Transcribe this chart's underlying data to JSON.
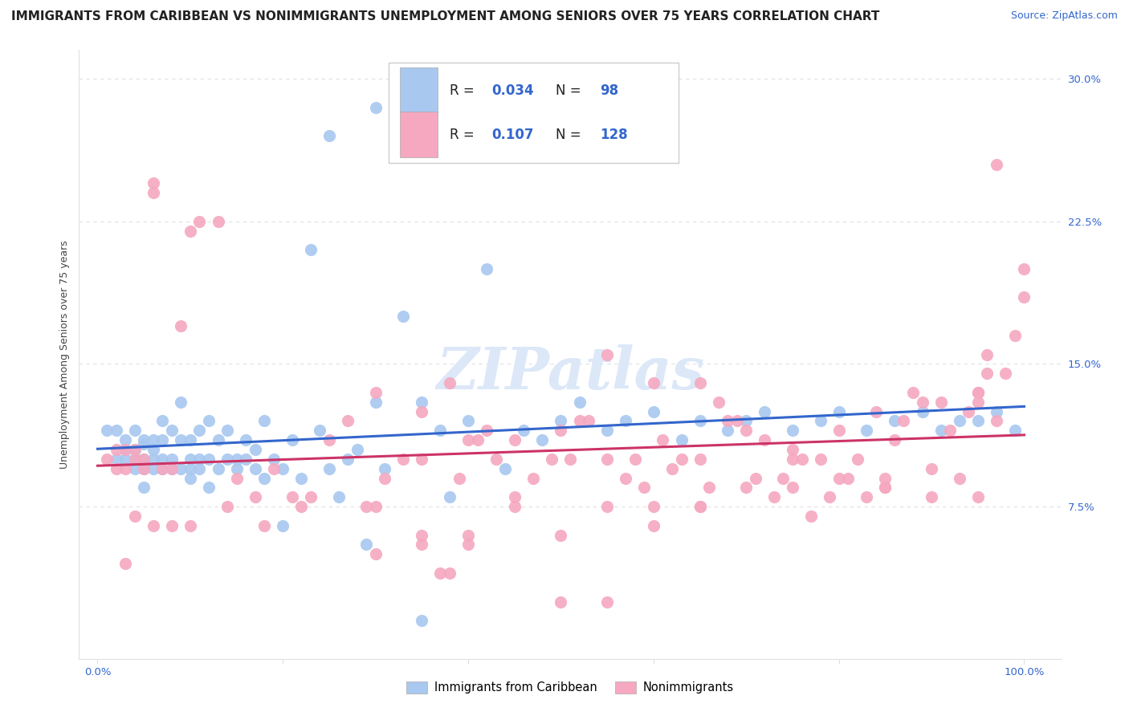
{
  "title": "IMMIGRANTS FROM CARIBBEAN VS NONIMMIGRANTS UNEMPLOYMENT AMONG SENIORS OVER 75 YEARS CORRELATION CHART",
  "source": "Source: ZipAtlas.com",
  "ylabel": "Unemployment Among Seniors over 75 years",
  "R_blue": 0.034,
  "N_blue": 98,
  "R_pink": 0.107,
  "N_pink": 128,
  "blue_color": "#a8c8f0",
  "pink_color": "#f5a8c0",
  "trend_blue": "#3366cc",
  "trend_pink": "#cc3366",
  "watermark": "ZIPatlas",
  "watermark_color": "#dce8f8",
  "title_fontsize": 11.0,
  "source_fontsize": 9,
  "axis_label_fontsize": 9,
  "tick_label_fontsize": 9.5,
  "background_color": "#ffffff",
  "grid_color": "#e0e0e0",
  "legend_text_color": "#222222",
  "rn_value_color": "#3366cc",
  "blue_x": [
    0.01,
    0.02,
    0.02,
    0.03,
    0.03,
    0.03,
    0.04,
    0.04,
    0.04,
    0.04,
    0.05,
    0.05,
    0.05,
    0.05,
    0.05,
    0.06,
    0.06,
    0.06,
    0.06,
    0.07,
    0.07,
    0.07,
    0.07,
    0.08,
    0.08,
    0.08,
    0.09,
    0.09,
    0.09,
    0.1,
    0.1,
    0.1,
    0.1,
    0.11,
    0.11,
    0.11,
    0.12,
    0.12,
    0.12,
    0.13,
    0.13,
    0.14,
    0.14,
    0.15,
    0.15,
    0.16,
    0.16,
    0.17,
    0.17,
    0.18,
    0.18,
    0.19,
    0.2,
    0.2,
    0.21,
    0.22,
    0.23,
    0.24,
    0.25,
    0.26,
    0.27,
    0.28,
    0.29,
    0.3,
    0.31,
    0.33,
    0.35,
    0.37,
    0.38,
    0.4,
    0.42,
    0.44,
    0.46,
    0.48,
    0.5,
    0.52,
    0.55,
    0.57,
    0.6,
    0.63,
    0.65,
    0.68,
    0.7,
    0.72,
    0.75,
    0.78,
    0.8,
    0.83,
    0.86,
    0.89,
    0.91,
    0.93,
    0.95,
    0.97,
    0.99,
    0.25,
    0.3,
    0.35
  ],
  "blue_y": [
    0.115,
    0.1,
    0.115,
    0.1,
    0.11,
    0.105,
    0.095,
    0.1,
    0.105,
    0.115,
    0.085,
    0.1,
    0.108,
    0.095,
    0.11,
    0.1,
    0.11,
    0.095,
    0.105,
    0.1,
    0.095,
    0.12,
    0.11,
    0.1,
    0.115,
    0.095,
    0.13,
    0.11,
    0.095,
    0.1,
    0.095,
    0.11,
    0.09,
    0.1,
    0.115,
    0.095,
    0.085,
    0.1,
    0.12,
    0.095,
    0.11,
    0.1,
    0.115,
    0.1,
    0.095,
    0.1,
    0.11,
    0.095,
    0.105,
    0.09,
    0.12,
    0.1,
    0.065,
    0.095,
    0.11,
    0.09,
    0.21,
    0.115,
    0.095,
    0.08,
    0.1,
    0.105,
    0.055,
    0.13,
    0.095,
    0.175,
    0.13,
    0.115,
    0.08,
    0.12,
    0.2,
    0.095,
    0.115,
    0.11,
    0.12,
    0.13,
    0.115,
    0.12,
    0.125,
    0.11,
    0.12,
    0.115,
    0.12,
    0.125,
    0.115,
    0.12,
    0.125,
    0.115,
    0.12,
    0.125,
    0.115,
    0.12,
    0.12,
    0.125,
    0.115,
    0.27,
    0.285,
    0.015
  ],
  "pink_x": [
    0.01,
    0.02,
    0.02,
    0.03,
    0.03,
    0.04,
    0.04,
    0.05,
    0.05,
    0.06,
    0.06,
    0.07,
    0.08,
    0.09,
    0.1,
    0.11,
    0.13,
    0.15,
    0.17,
    0.19,
    0.21,
    0.23,
    0.25,
    0.27,
    0.29,
    0.31,
    0.33,
    0.35,
    0.37,
    0.39,
    0.41,
    0.43,
    0.45,
    0.47,
    0.49,
    0.51,
    0.53,
    0.55,
    0.57,
    0.59,
    0.61,
    0.63,
    0.65,
    0.67,
    0.69,
    0.71,
    0.73,
    0.75,
    0.77,
    0.79,
    0.81,
    0.83,
    0.85,
    0.87,
    0.89,
    0.91,
    0.93,
    0.95,
    0.97,
    0.99,
    0.3,
    0.35,
    0.4,
    0.45,
    0.5,
    0.55,
    0.6,
    0.65,
    0.7,
    0.75,
    0.8,
    0.85,
    0.9,
    0.95,
    0.38,
    0.42,
    0.52,
    0.58,
    0.62,
    0.68,
    0.72,
    0.76,
    0.82,
    0.86,
    0.92,
    0.96,
    0.98,
    1.0,
    1.0,
    0.97,
    0.96,
    0.95,
    0.94,
    0.88,
    0.84,
    0.78,
    0.74,
    0.66,
    0.38,
    0.3,
    0.22,
    0.18,
    0.14,
    0.1,
    0.08,
    0.06,
    0.04,
    0.03,
    0.5,
    0.55,
    0.35,
    0.4,
    0.6,
    0.65,
    0.7,
    0.75,
    0.8,
    0.85,
    0.9,
    0.95,
    0.3,
    0.35,
    0.4,
    0.45,
    0.5,
    0.55,
    0.6,
    0.65
  ],
  "pink_y": [
    0.1,
    0.095,
    0.105,
    0.095,
    0.105,
    0.1,
    0.105,
    0.1,
    0.095,
    0.245,
    0.24,
    0.095,
    0.095,
    0.17,
    0.22,
    0.225,
    0.225,
    0.09,
    0.08,
    0.095,
    0.08,
    0.08,
    0.11,
    0.12,
    0.075,
    0.09,
    0.1,
    0.1,
    0.04,
    0.09,
    0.11,
    0.1,
    0.11,
    0.09,
    0.1,
    0.1,
    0.12,
    0.1,
    0.09,
    0.085,
    0.11,
    0.1,
    0.1,
    0.13,
    0.12,
    0.09,
    0.08,
    0.1,
    0.07,
    0.08,
    0.09,
    0.08,
    0.09,
    0.12,
    0.13,
    0.13,
    0.09,
    0.13,
    0.12,
    0.165,
    0.135,
    0.125,
    0.11,
    0.08,
    0.115,
    0.155,
    0.14,
    0.14,
    0.115,
    0.105,
    0.115,
    0.085,
    0.08,
    0.135,
    0.14,
    0.115,
    0.12,
    0.1,
    0.095,
    0.12,
    0.11,
    0.1,
    0.1,
    0.11,
    0.115,
    0.145,
    0.145,
    0.2,
    0.185,
    0.255,
    0.155,
    0.135,
    0.125,
    0.135,
    0.125,
    0.1,
    0.09,
    0.085,
    0.04,
    0.05,
    0.075,
    0.065,
    0.075,
    0.065,
    0.065,
    0.065,
    0.07,
    0.045,
    0.025,
    0.025,
    0.055,
    0.055,
    0.075,
    0.075,
    0.085,
    0.085,
    0.09,
    0.085,
    0.095,
    0.08,
    0.075,
    0.06,
    0.06,
    0.075,
    0.06,
    0.075,
    0.065,
    0.075
  ]
}
